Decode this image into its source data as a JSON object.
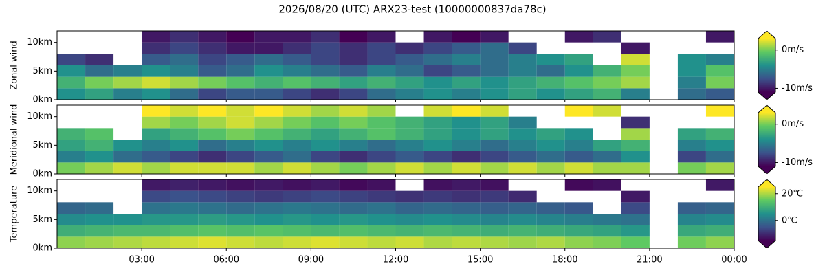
{
  "title": "2026/08/20 (UTC) ARX23-test (10000000837da78c)",
  "chart_data": [
    {
      "type": "heatmap",
      "ylabel": "Zonal wind",
      "colormap": "viridis",
      "x_edges": [
        0,
        1,
        2,
        3,
        4,
        5,
        6,
        7,
        8,
        9,
        10,
        11,
        12,
        13,
        14,
        15,
        16,
        17,
        18,
        19,
        20,
        21,
        22,
        23,
        24
      ],
      "y_edges": [
        0,
        2,
        4,
        6,
        8,
        10,
        12
      ],
      "ylim": [
        0,
        12
      ],
      "yticks": [
        {
          "value": 0,
          "label": "0km"
        },
        {
          "value": 5,
          "label": "5km"
        },
        {
          "value": 10,
          "label": "10km"
        }
      ],
      "clim": [
        -11,
        3
      ],
      "cticks": [
        {
          "value": 0,
          "label": "0m/s"
        },
        {
          "value": -10,
          "label": "-10m/s"
        }
      ],
      "z": [
        [
          -4,
          -3,
          -5,
          -4,
          -6,
          -8,
          -7,
          -7,
          -8,
          -9,
          -8,
          -6,
          -5,
          -4,
          -5,
          -4,
          -3,
          -4,
          -3,
          -2,
          -5,
          null,
          -6,
          -7
        ],
        [
          -2,
          0,
          1,
          2,
          1,
          0,
          -1,
          -2,
          -1,
          -2,
          -3,
          -2,
          -3,
          -4,
          -3,
          -4,
          -3,
          -2,
          -1,
          0,
          1,
          null,
          -5,
          0
        ],
        [
          -4,
          -6,
          -5,
          -4,
          -5,
          -7,
          -6,
          -4,
          -5,
          -6,
          -7,
          -5,
          -6,
          -8,
          -7,
          -6,
          -5,
          -6,
          -4,
          -2,
          0,
          null,
          -4,
          -1
        ],
        [
          -8,
          -9,
          null,
          -7,
          -6,
          -8,
          -7,
          -6,
          -7,
          -8,
          -9,
          -8,
          -7,
          -6,
          -5,
          -6,
          -5,
          -4,
          -3,
          null,
          2,
          null,
          -4,
          -5
        ],
        [
          null,
          null,
          null,
          -9,
          -8,
          -9,
          -10,
          -10,
          -9,
          -8,
          -9,
          -8,
          -9,
          -8,
          -7,
          -6,
          -8,
          null,
          null,
          null,
          -10,
          null,
          null,
          null
        ],
        [
          null,
          null,
          null,
          -10,
          -9,
          -10,
          -11,
          -10,
          -10,
          -9,
          -11,
          -10,
          null,
          -10,
          -11,
          -10,
          null,
          null,
          -10,
          -9,
          null,
          null,
          null,
          -10
        ]
      ]
    },
    {
      "type": "heatmap",
      "ylabel": "Meridional wind",
      "colormap": "viridis",
      "x_edges": [
        0,
        1,
        2,
        3,
        4,
        5,
        6,
        7,
        8,
        9,
        10,
        11,
        12,
        13,
        14,
        15,
        16,
        17,
        18,
        19,
        20,
        21,
        22,
        23,
        24
      ],
      "y_edges": [
        0,
        2,
        4,
        6,
        8,
        10,
        12
      ],
      "ylim": [
        0,
        12
      ],
      "yticks": [
        {
          "value": 0,
          "label": "0km"
        },
        {
          "value": 5,
          "label": "5km"
        },
        {
          "value": 10,
          "label": "10km"
        }
      ],
      "clim": [
        -11,
        3
      ],
      "cticks": [
        {
          "value": 0,
          "label": "0m/s"
        },
        {
          "value": -10,
          "label": "-10m/s"
        }
      ],
      "z": [
        [
          0,
          1,
          2,
          1,
          2,
          2,
          2,
          1,
          2,
          1,
          0,
          1,
          2,
          1,
          2,
          1,
          2,
          1,
          2,
          1,
          1,
          null,
          0,
          1
        ],
        [
          -5,
          -4,
          -6,
          -7,
          -8,
          -9,
          -8,
          -7,
          -6,
          -8,
          -9,
          -8,
          -7,
          -8,
          -9,
          -8,
          -7,
          -6,
          -7,
          -6,
          -4,
          null,
          -8,
          -6
        ],
        [
          -3,
          -2,
          -4,
          -5,
          -4,
          -6,
          -5,
          -4,
          -5,
          -4,
          -5,
          -6,
          -5,
          -4,
          -5,
          -6,
          -5,
          -4,
          -5,
          -3,
          -2,
          null,
          -5,
          -4
        ],
        [
          -2,
          -1,
          null,
          -3,
          -2,
          -1,
          0,
          -1,
          -2,
          -3,
          -2,
          -1,
          -2,
          -3,
          -4,
          -3,
          -4,
          -3,
          -4,
          null,
          1,
          null,
          -3,
          -2
        ],
        [
          null,
          null,
          null,
          1,
          0,
          1,
          2,
          1,
          0,
          -1,
          0,
          -1,
          -2,
          -3,
          -4,
          -3,
          -5,
          null,
          null,
          null,
          -9,
          null,
          null,
          null
        ],
        [
          null,
          null,
          null,
          3,
          2,
          3,
          2,
          3,
          2,
          1,
          2,
          1,
          null,
          2,
          3,
          2,
          null,
          null,
          3,
          2,
          null,
          null,
          null,
          3
        ]
      ]
    },
    {
      "type": "heatmap",
      "ylabel": "Temperature",
      "colormap": "viridis",
      "x_edges": [
        0,
        1,
        2,
        3,
        4,
        5,
        6,
        7,
        8,
        9,
        10,
        11,
        12,
        13,
        14,
        15,
        16,
        17,
        18,
        19,
        20,
        21,
        22,
        23,
        24
      ],
      "y_edges": [
        0,
        2,
        4,
        6,
        8,
        10,
        12
      ],
      "xlim": [
        0,
        24
      ],
      "xticks": [
        {
          "value": 3,
          "label": "03:00"
        },
        {
          "value": 6,
          "label": "06:00"
        },
        {
          "value": 9,
          "label": "09:00"
        },
        {
          "value": 12,
          "label": "12:00"
        },
        {
          "value": 15,
          "label": "15:00"
        },
        {
          "value": 18,
          "label": "18:00"
        },
        {
          "value": 21,
          "label": "21:00"
        },
        {
          "value": 24,
          "label": "00:00"
        }
      ],
      "ylim": [
        0,
        12
      ],
      "yticks": [
        {
          "value": 0,
          "label": "0km"
        },
        {
          "value": 5,
          "label": "5km"
        },
        {
          "value": 10,
          "label": "10km"
        }
      ],
      "clim": [
        -15,
        25
      ],
      "cticks": [
        {
          "value": 20,
          "label": "20℃"
        },
        {
          "value": 0,
          "label": "0℃"
        }
      ],
      "z": [
        [
          18,
          19,
          20,
          21,
          22,
          23,
          22,
          21,
          22,
          23,
          22,
          21,
          22,
          20,
          21,
          20,
          19,
          20,
          18,
          17,
          15,
          null,
          16,
          18
        ],
        [
          10,
          11,
          12,
          12,
          13,
          14,
          13,
          14,
          13,
          12,
          13,
          12,
          11,
          12,
          11,
          10,
          11,
          10,
          9,
          8,
          6,
          null,
          9,
          10
        ],
        [
          4,
          5,
          5,
          6,
          6,
          7,
          6,
          5,
          6,
          5,
          6,
          5,
          4,
          5,
          4,
          3,
          4,
          3,
          2,
          1,
          0,
          null,
          3,
          4
        ],
        [
          -2,
          -1,
          null,
          0,
          1,
          0,
          -1,
          0,
          1,
          0,
          -1,
          0,
          -2,
          -1,
          -2,
          -3,
          -2,
          -3,
          -4,
          null,
          -6,
          null,
          -3,
          -2
        ],
        [
          null,
          null,
          null,
          -6,
          -5,
          -6,
          -7,
          -8,
          -7,
          -6,
          -7,
          -8,
          -9,
          -8,
          -9,
          -8,
          -10,
          null,
          null,
          null,
          -12,
          null,
          null,
          null
        ],
        [
          null,
          null,
          null,
          -12,
          -11,
          -12,
          -13,
          -12,
          -13,
          -12,
          -14,
          -13,
          null,
          -13,
          -12,
          -13,
          null,
          null,
          -14,
          -13,
          null,
          null,
          null,
          -12
        ]
      ]
    }
  ]
}
